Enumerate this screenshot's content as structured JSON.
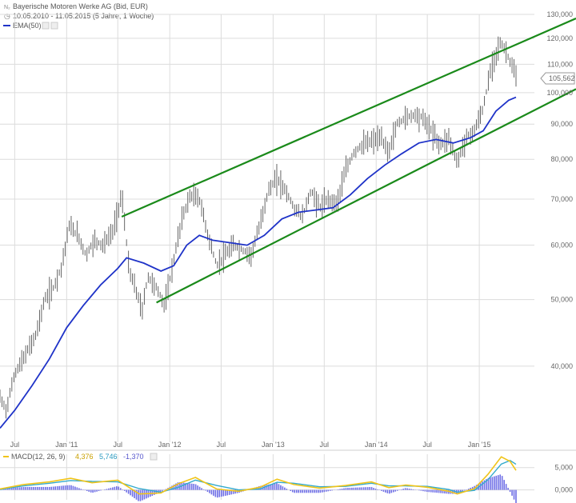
{
  "header": {
    "title": "Bayerische Motoren Werke AG (Bid, EUR)",
    "range": "10.05.2010 - 11.05.2015 (5 Jahre, 1 Woche)",
    "ema_label": "EMA(50)"
  },
  "colors": {
    "ema": "#1f33c8",
    "channel": "#1a8a1a",
    "price": "#555555",
    "macd": "#f0c419",
    "signal": "#33aacc",
    "hist": "#6e6ee6",
    "grid": "#dcdcdc"
  },
  "chart_data": [
    {
      "type": "line",
      "y_scale": "log",
      "ylim": [
        31000,
        130000
      ],
      "y_ticks": [
        {
          "value": 130000,
          "label": "130,000"
        },
        {
          "value": 120000,
          "label": "120,000"
        },
        {
          "value": 110000,
          "label": "110,000"
        },
        {
          "value": 100000,
          "label": "100,000"
        },
        {
          "value": 90000,
          "label": "90,000"
        },
        {
          "value": 80000,
          "label": "80,000"
        },
        {
          "value": 70000,
          "label": "70,000"
        },
        {
          "value": 60000,
          "label": "60,000"
        },
        {
          "value": 50000,
          "label": "50,000"
        },
        {
          "value": 40000,
          "label": "40,000"
        }
      ],
      "x_range": [
        "2010-05-10",
        "2015-05-11"
      ],
      "x_ticks": [
        {
          "date": "2010-07-01",
          "label": "Jul"
        },
        {
          "date": "2011-01-01",
          "label": "Jan '11"
        },
        {
          "date": "2011-07-01",
          "label": "Jul"
        },
        {
          "date": "2012-01-01",
          "label": "Jan '12"
        },
        {
          "date": "2012-07-01",
          "label": "Jul"
        },
        {
          "date": "2013-01-01",
          "label": "Jan '13"
        },
        {
          "date": "2013-07-01",
          "label": "Jul"
        },
        {
          "date": "2014-01-01",
          "label": "Jan '14"
        },
        {
          "date": "2014-07-01",
          "label": "Jul"
        },
        {
          "date": "2015-01-01",
          "label": "Jan '15"
        }
      ],
      "last_value_label": "105,562",
      "price_path": [
        [
          "2010-05-10",
          36000
        ],
        [
          "2010-06-01",
          34500
        ],
        [
          "2010-07-01",
          39000
        ],
        [
          "2010-08-01",
          41000
        ],
        [
          "2010-09-15",
          44500
        ],
        [
          "2010-10-15",
          50000
        ],
        [
          "2010-11-15",
          52000
        ],
        [
          "2010-12-15",
          56000
        ],
        [
          "2011-01-10",
          64000
        ],
        [
          "2011-02-10",
          62000
        ],
        [
          "2011-03-10",
          58000
        ],
        [
          "2011-04-10",
          61000
        ],
        [
          "2011-05-10",
          60000
        ],
        [
          "2011-06-15",
          63000
        ],
        [
          "2011-07-15",
          71000
        ],
        [
          "2011-08-10",
          55000
        ],
        [
          "2011-09-01",
          52000
        ],
        [
          "2011-09-25",
          48000
        ],
        [
          "2011-10-15",
          54000
        ],
        [
          "2011-11-15",
          52000
        ],
        [
          "2011-12-15",
          49000
        ],
        [
          "2012-01-15",
          57000
        ],
        [
          "2012-02-15",
          66000
        ],
        [
          "2012-03-15",
          71000
        ],
        [
          "2012-04-15",
          70000
        ],
        [
          "2012-05-15",
          62000
        ],
        [
          "2012-06-15",
          56000
        ],
        [
          "2012-07-15",
          58000
        ],
        [
          "2012-08-15",
          60000
        ],
        [
          "2012-09-15",
          59000
        ],
        [
          "2012-10-15",
          58000
        ],
        [
          "2012-11-15",
          64000
        ],
        [
          "2012-12-15",
          72000
        ],
        [
          "2013-01-15",
          75000
        ],
        [
          "2013-02-15",
          72000
        ],
        [
          "2013-03-15",
          68000
        ],
        [
          "2013-04-15",
          66000
        ],
        [
          "2013-05-15",
          72000
        ],
        [
          "2013-06-15",
          68000
        ],
        [
          "2013-07-15",
          70000
        ],
        [
          "2013-08-15",
          69000
        ],
        [
          "2013-09-15",
          77000
        ],
        [
          "2013-10-15",
          82000
        ],
        [
          "2013-11-15",
          84000
        ],
        [
          "2013-12-15",
          85000
        ],
        [
          "2014-01-15",
          86000
        ],
        [
          "2014-02-15",
          82000
        ],
        [
          "2014-03-15",
          90000
        ],
        [
          "2014-04-15",
          92000
        ],
        [
          "2014-05-15",
          93000
        ],
        [
          "2014-06-15",
          92000
        ],
        [
          "2014-07-15",
          88000
        ],
        [
          "2014-08-15",
          84000
        ],
        [
          "2014-09-15",
          86000
        ],
        [
          "2014-10-15",
          79000
        ],
        [
          "2014-11-15",
          86000
        ],
        [
          "2014-12-15",
          88000
        ],
        [
          "2015-01-15",
          95000
        ],
        [
          "2015-02-15",
          110000
        ],
        [
          "2015-03-15",
          118000
        ],
        [
          "2015-04-01",
          116000
        ],
        [
          "2015-04-20",
          111000
        ],
        [
          "2015-05-11",
          105562
        ]
      ],
      "series": [
        {
          "name": "EMA(50)",
          "points": [
            [
              "2010-05-10",
              32500
            ],
            [
              "2010-07-01",
              34500
            ],
            [
              "2010-09-01",
              37500
            ],
            [
              "2010-11-01",
              41000
            ],
            [
              "2011-01-01",
              45500
            ],
            [
              "2011-03-01",
              49000
            ],
            [
              "2011-05-01",
              52500
            ],
            [
              "2011-07-01",
              55500
            ],
            [
              "2011-08-01",
              57500
            ],
            [
              "2011-10-01",
              56500
            ],
            [
              "2011-12-01",
              55000
            ],
            [
              "2012-01-15",
              56000
            ],
            [
              "2012-03-01",
              60000
            ],
            [
              "2012-04-15",
              62000
            ],
            [
              "2012-06-01",
              61000
            ],
            [
              "2012-08-01",
              60500
            ],
            [
              "2012-10-01",
              60000
            ],
            [
              "2012-12-01",
              62000
            ],
            [
              "2013-02-01",
              65500
            ],
            [
              "2013-04-01",
              67000
            ],
            [
              "2013-06-01",
              67500
            ],
            [
              "2013-08-01",
              68000
            ],
            [
              "2013-10-01",
              71000
            ],
            [
              "2013-12-01",
              75000
            ],
            [
              "2014-02-01",
              78500
            ],
            [
              "2014-04-01",
              81500
            ],
            [
              "2014-06-01",
              84500
            ],
            [
              "2014-08-01",
              85500
            ],
            [
              "2014-10-01",
              84500
            ],
            [
              "2014-12-01",
              86000
            ],
            [
              "2015-01-15",
              88000
            ],
            [
              "2015-03-01",
              94000
            ],
            [
              "2015-04-15",
              97500
            ],
            [
              "2015-05-11",
              98500
            ]
          ]
        }
      ],
      "channel_lines": [
        {
          "name": "upper",
          "points": [
            [
              "2011-07-15",
              66000
            ],
            [
              "2015-05-11",
              121000
            ]
          ]
        },
        {
          "name": "lower",
          "points": [
            [
              "2011-11-15",
              49500
            ],
            [
              "2015-05-11",
              95500
            ]
          ]
        }
      ]
    },
    {
      "type": "line",
      "legend": {
        "label": "MACD(12, 26, 9)",
        "macd": "4,376",
        "signal": "5,746",
        "histogram": "-1,370"
      },
      "ylim": [
        -1500,
        8000
      ],
      "y_ticks": [
        {
          "value": 5000,
          "label": "5,000"
        },
        {
          "value": 0,
          "label": "0,000"
        }
      ],
      "x_range": [
        "2010-05-10",
        "2015-05-11"
      ],
      "series": [
        {
          "name": "MACD",
          "points": [
            [
              "2010-05-10",
              200
            ],
            [
              "2010-08-01",
              1200
            ],
            [
              "2010-11-01",
              1800
            ],
            [
              "2011-01-15",
              2600
            ],
            [
              "2011-04-01",
              1600
            ],
            [
              "2011-07-01",
              2200
            ],
            [
              "2011-09-15",
              -900
            ],
            [
              "2011-12-01",
              -700
            ],
            [
              "2012-02-01",
              1400
            ],
            [
              "2012-04-01",
              2800
            ],
            [
              "2012-06-15",
              200
            ],
            [
              "2012-09-01",
              -300
            ],
            [
              "2012-11-15",
              600
            ],
            [
              "2013-01-15",
              2400
            ],
            [
              "2013-03-15",
              1200
            ],
            [
              "2013-06-15",
              400
            ],
            [
              "2013-09-15",
              1000
            ],
            [
              "2013-12-15",
              1800
            ],
            [
              "2014-02-15",
              500
            ],
            [
              "2014-04-15",
              1100
            ],
            [
              "2014-07-01",
              600
            ],
            [
              "2014-09-15",
              -300
            ],
            [
              "2014-10-15",
              -900
            ],
            [
              "2014-12-15",
              300
            ],
            [
              "2015-02-01",
              3500
            ],
            [
              "2015-03-20",
              7400
            ],
            [
              "2015-04-20",
              6400
            ],
            [
              "2015-05-11",
              4376
            ]
          ]
        },
        {
          "name": "Signal",
          "points": [
            [
              "2010-05-10",
              100
            ],
            [
              "2010-08-01",
              900
            ],
            [
              "2010-11-01",
              1500
            ],
            [
              "2011-01-15",
              2100
            ],
            [
              "2011-04-01",
              1900
            ],
            [
              "2011-07-01",
              1800
            ],
            [
              "2011-09-15",
              300
            ],
            [
              "2011-12-01",
              -500
            ],
            [
              "2012-02-01",
              600
            ],
            [
              "2012-04-01",
              2200
            ],
            [
              "2012-06-15",
              1000
            ],
            [
              "2012-09-01",
              0
            ],
            [
              "2012-11-15",
              200
            ],
            [
              "2013-01-15",
              1700
            ],
            [
              "2013-03-15",
              1500
            ],
            [
              "2013-06-15",
              700
            ],
            [
              "2013-09-15",
              800
            ],
            [
              "2013-12-15",
              1500
            ],
            [
              "2014-02-15",
              900
            ],
            [
              "2014-04-15",
              900
            ],
            [
              "2014-07-01",
              800
            ],
            [
              "2014-09-15",
              100
            ],
            [
              "2014-10-15",
              -500
            ],
            [
              "2014-12-15",
              -100
            ],
            [
              "2015-02-01",
              2300
            ],
            [
              "2015-03-20",
              5800
            ],
            [
              "2015-04-20",
              6600
            ],
            [
              "2015-05-11",
              5746
            ]
          ]
        }
      ]
    }
  ]
}
